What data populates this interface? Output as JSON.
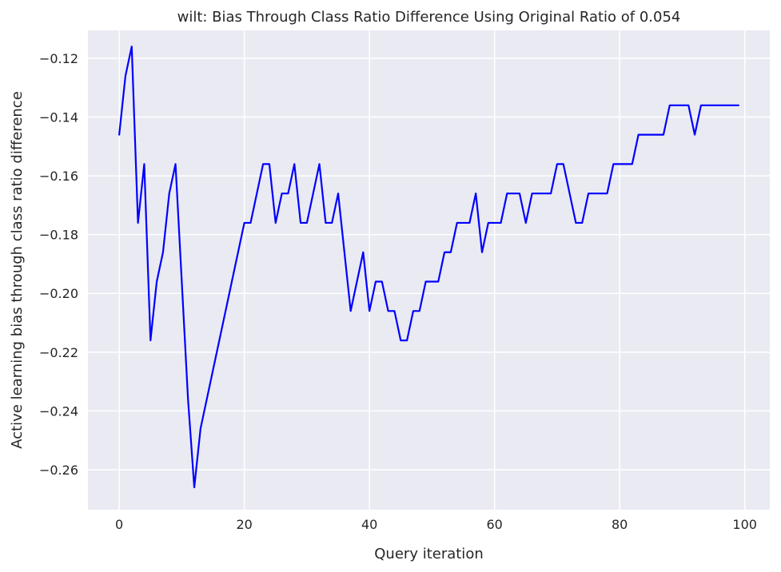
{
  "chart_data": {
    "type": "line",
    "title": "wilt: Bias Through Class Ratio Difference Using Original Ratio of 0.054",
    "xlabel": "Query iteration",
    "ylabel": "Active learning bias through class ratio difference",
    "xlim": [
      -5,
      104
    ],
    "ylim": [
      -0.2736,
      -0.1105
    ],
    "x_ticks": [
      0,
      20,
      40,
      60,
      80,
      100
    ],
    "x_tick_labels": [
      "0",
      "20",
      "40",
      "60",
      "80",
      "100"
    ],
    "y_ticks": [
      -0.26,
      -0.24,
      -0.22,
      -0.2,
      -0.18,
      -0.16,
      -0.14,
      -0.12
    ],
    "y_tick_labels": [
      "−0.26",
      "−0.24",
      "−0.22",
      "−0.20",
      "−0.18",
      "−0.16",
      "−0.14",
      "−0.12"
    ],
    "grid": true,
    "background": "#eaeaf2",
    "series": [
      {
        "color": "#0000ff",
        "x": [
          0,
          1,
          2,
          3,
          4,
          5,
          6,
          7,
          8,
          9,
          10,
          11,
          12,
          13,
          14,
          15,
          16,
          17,
          18,
          19,
          20,
          21,
          22,
          23,
          24,
          25,
          26,
          27,
          28,
          29,
          30,
          31,
          32,
          33,
          34,
          35,
          36,
          37,
          38,
          39,
          40,
          41,
          42,
          43,
          44,
          45,
          46,
          47,
          48,
          49,
          50,
          51,
          52,
          53,
          54,
          55,
          56,
          57,
          58,
          59,
          60,
          61,
          62,
          63,
          64,
          65,
          66,
          67,
          68,
          69,
          70,
          71,
          72,
          73,
          74,
          75,
          76,
          77,
          78,
          79,
          80,
          81,
          82,
          83,
          84,
          85,
          86,
          87,
          88,
          89,
          90,
          91,
          92,
          93,
          94,
          95,
          96,
          97,
          98,
          99
        ],
        "y": [
          -0.146,
          -0.126,
          -0.116,
          -0.176,
          -0.156,
          -0.216,
          -0.196,
          -0.186,
          -0.166,
          -0.156,
          -0.196,
          -0.236,
          -0.266,
          -0.246,
          -0.236,
          -0.226,
          -0.216,
          -0.206,
          -0.196,
          -0.186,
          -0.176,
          -0.176,
          -0.166,
          -0.156,
          -0.156,
          -0.176,
          -0.166,
          -0.166,
          -0.156,
          -0.176,
          -0.176,
          -0.166,
          -0.156,
          -0.176,
          -0.176,
          -0.166,
          -0.186,
          -0.206,
          -0.196,
          -0.186,
          -0.206,
          -0.196,
          -0.196,
          -0.206,
          -0.206,
          -0.216,
          -0.216,
          -0.206,
          -0.206,
          -0.196,
          -0.196,
          -0.196,
          -0.186,
          -0.186,
          -0.176,
          -0.176,
          -0.176,
          -0.166,
          -0.186,
          -0.176,
          -0.176,
          -0.176,
          -0.166,
          -0.166,
          -0.166,
          -0.176,
          -0.166,
          -0.166,
          -0.166,
          -0.166,
          -0.156,
          -0.156,
          -0.166,
          -0.176,
          -0.176,
          -0.166,
          -0.166,
          -0.166,
          -0.166,
          -0.156,
          -0.156,
          -0.156,
          -0.156,
          -0.146,
          -0.146,
          -0.146,
          -0.146,
          -0.146,
          -0.136,
          -0.136,
          -0.136,
          -0.136,
          -0.146,
          -0.136,
          -0.136,
          -0.136,
          -0.136,
          -0.136,
          -0.136,
          -0.136
        ]
      }
    ]
  }
}
